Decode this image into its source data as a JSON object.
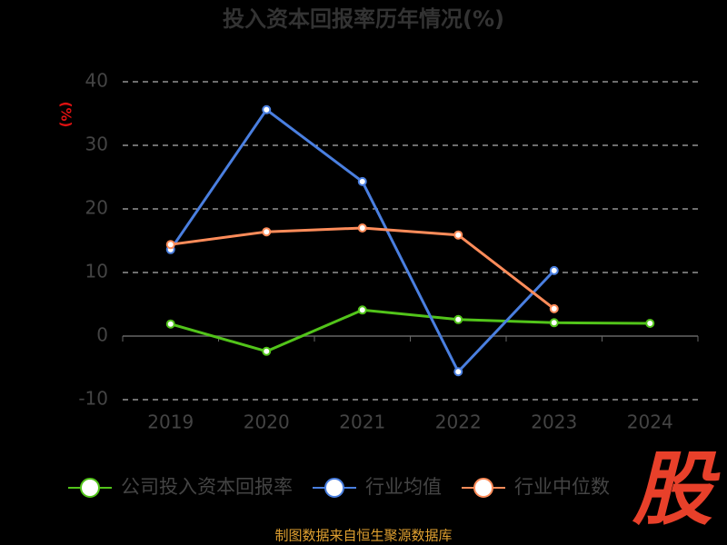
{
  "chart_data": {
    "type": "line",
    "title": "投入资本回报率历年情况(%)",
    "y_label": "(%)",
    "categories": [
      "2019",
      "2020",
      "2021",
      "2022",
      "2023",
      "2024"
    ],
    "series": [
      {
        "name": "公司投入资本回报率",
        "color": "#52c41a",
        "values": [
          1.9,
          -2.4,
          4.1,
          2.6,
          2.1,
          2.0
        ]
      },
      {
        "name": "行业均值",
        "color": "#4a7fe0",
        "values": [
          13.6,
          35.6,
          24.3,
          -5.6,
          10.3,
          null
        ]
      },
      {
        "name": "行业中位数",
        "color": "#ff8c5a",
        "values": [
          14.4,
          16.4,
          17.0,
          15.9,
          4.3,
          null
        ]
      }
    ],
    "ylim": [
      -10,
      40
    ],
    "yticks": [
      -10,
      0,
      10,
      20,
      30,
      40
    ],
    "grid": true,
    "legend": "bottom",
    "source": "制图数据来自恒生聚源数据库",
    "logo": "股"
  }
}
